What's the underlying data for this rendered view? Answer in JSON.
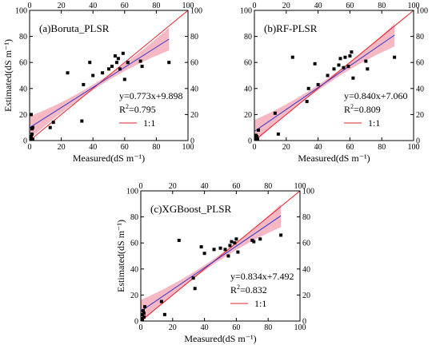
{
  "chart_data": [
    {
      "type": "scatter",
      "panel_label": "(a)Boruta_PLSR",
      "xlabel": "Measured(dS m⁻¹)",
      "ylabel": "Estimated(dS m⁻¹)",
      "xlim": [
        0,
        100
      ],
      "ylim": [
        0,
        100
      ],
      "xticks": [
        0,
        20,
        40,
        60,
        80,
        100
      ],
      "yticks": [
        0,
        20,
        40,
        60,
        80,
        100
      ],
      "mirrored_ticks_top_right": true,
      "equation": "y=0.773x+9.898",
      "r2_label": "R",
      "r2_value": "=0.795",
      "legend_label": "1:1",
      "fit": {
        "slope": 0.773,
        "intercept": 9.898,
        "x_range": [
          0,
          88
        ]
      },
      "identity_line": true,
      "colors": {
        "points": "#000000",
        "fit": "#3333cc",
        "band": "#f4a6b4",
        "identity": "#e8202a"
      },
      "points": [
        [
          0.5,
          1
        ],
        [
          1,
          3
        ],
        [
          1.5,
          5
        ],
        [
          2,
          1
        ],
        [
          2,
          10
        ],
        [
          1,
          20
        ],
        [
          1.5,
          9
        ],
        [
          13,
          10
        ],
        [
          15,
          14
        ],
        [
          24,
          52
        ],
        [
          33,
          15
        ],
        [
          34,
          43
        ],
        [
          38,
          60
        ],
        [
          40,
          50
        ],
        [
          46,
          52
        ],
        [
          50,
          55
        ],
        [
          52,
          57
        ],
        [
          54,
          65
        ],
        [
          55,
          60
        ],
        [
          56,
          63
        ],
        [
          57,
          55
        ],
        [
          59,
          67
        ],
        [
          60,
          47
        ],
        [
          62,
          60
        ],
        [
          70,
          61
        ],
        [
          71,
          57
        ],
        [
          88,
          60
        ]
      ]
    },
    {
      "type": "scatter",
      "panel_label": "(b)RF-PLSR",
      "xlabel": "Measured(dS m⁻¹)",
      "ylabel": "",
      "xlim": [
        0,
        100
      ],
      "ylim": [
        0,
        100
      ],
      "xticks": [
        0,
        20,
        40,
        60,
        80,
        100
      ],
      "yticks": [
        0,
        20,
        40,
        60,
        80,
        100
      ],
      "mirrored_ticks_top_right": true,
      "equation": "y=0.840x+7.060",
      "r2_label": "R",
      "r2_value": "=0.809",
      "legend_label": "1:1",
      "fit": {
        "slope": 0.84,
        "intercept": 7.06,
        "x_range": [
          0,
          88
        ]
      },
      "identity_line": true,
      "colors": {
        "points": "#000000",
        "fit": "#3333cc",
        "band": "#f4a6b4",
        "identity": "#e8202a"
      },
      "points": [
        [
          0.5,
          1
        ],
        [
          1,
          4
        ],
        [
          1.5,
          3
        ],
        [
          2,
          1
        ],
        [
          2.5,
          8
        ],
        [
          1,
          2
        ],
        [
          13,
          21
        ],
        [
          15,
          5
        ],
        [
          24,
          64
        ],
        [
          33,
          30
        ],
        [
          34,
          40
        ],
        [
          38,
          59
        ],
        [
          40,
          43
        ],
        [
          46,
          50
        ],
        [
          50,
          55
        ],
        [
          53,
          58
        ],
        [
          54,
          63
        ],
        [
          56,
          56
        ],
        [
          57,
          64
        ],
        [
          59,
          57
        ],
        [
          60,
          65
        ],
        [
          61,
          68
        ],
        [
          62,
          48
        ],
        [
          70,
          61
        ],
        [
          71,
          55
        ],
        [
          88,
          64
        ]
      ]
    },
    {
      "type": "scatter",
      "panel_label": "(c)XGBoost_PLSR",
      "xlabel": "Measured(dS m⁻¹)",
      "ylabel": "Estimated(dS m⁻¹)",
      "xlim": [
        0,
        100
      ],
      "ylim": [
        0,
        100
      ],
      "xticks": [
        0,
        20,
        40,
        60,
        80,
        100
      ],
      "yticks": [
        0,
        20,
        40,
        60,
        80,
        100
      ],
      "mirrored_ticks_top_right": true,
      "equation": "y=0.834x+7.492",
      "r2_label": "R",
      "r2_value": "=0.832",
      "legend_label": "1:1",
      "fit": {
        "slope": 0.834,
        "intercept": 7.492,
        "x_range": [
          0,
          88
        ]
      },
      "identity_line": true,
      "colors": {
        "points": "#000000",
        "fit": "#3333cc",
        "band": "#f4a6b4",
        "identity": "#e8202a"
      },
      "points": [
        [
          0.5,
          2
        ],
        [
          1,
          5
        ],
        [
          1.5,
          8
        ],
        [
          2,
          3
        ],
        [
          2.5,
          11
        ],
        [
          1,
          1
        ],
        [
          2,
          6
        ],
        [
          13,
          15
        ],
        [
          15,
          5
        ],
        [
          24,
          62
        ],
        [
          33,
          33
        ],
        [
          34,
          25
        ],
        [
          38,
          57
        ],
        [
          40,
          52
        ],
        [
          46,
          55
        ],
        [
          50,
          56
        ],
        [
          53,
          55
        ],
        [
          55,
          50
        ],
        [
          56,
          58
        ],
        [
          57,
          61
        ],
        [
          59,
          60
        ],
        [
          60,
          63
        ],
        [
          61,
          53
        ],
        [
          70,
          62
        ],
        [
          71,
          61
        ],
        [
          75,
          63
        ],
        [
          88,
          66
        ]
      ]
    }
  ]
}
